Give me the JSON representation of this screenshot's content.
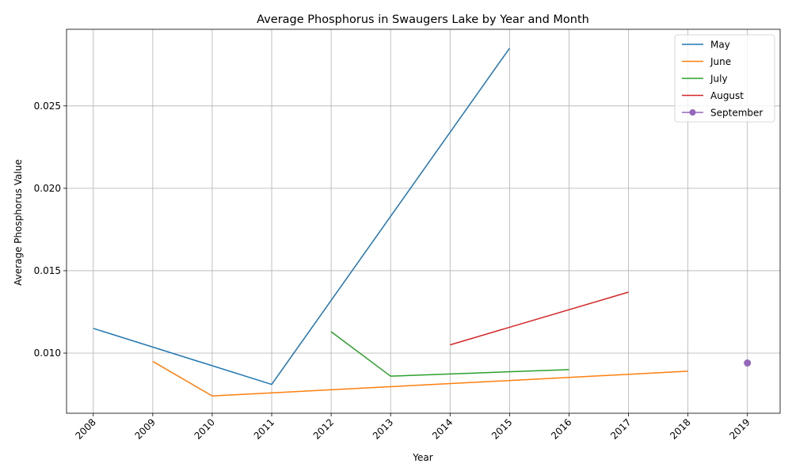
{
  "chart_data": {
    "type": "line",
    "title": "Average Phosphorus in Swaugers Lake by Year and Month",
    "xlabel": "Year",
    "ylabel": "Average Phosphorus Value",
    "xlim": [
      2007.55,
      2019.55
    ],
    "ylim": [
      0.00635,
      0.02965
    ],
    "x_ticks": [
      2008,
      2009,
      2010,
      2011,
      2012,
      2013,
      2014,
      2015,
      2016,
      2017,
      2018,
      2019
    ],
    "y_ticks": [
      0.01,
      0.015,
      0.02,
      0.025
    ],
    "y_tick_labels": [
      "0.010",
      "0.015",
      "0.020",
      "0.025"
    ],
    "grid": true,
    "legend_position": "top-right",
    "series": [
      {
        "name": "May",
        "color": "#1f77b4",
        "marker": "none",
        "x": [
          2008,
          2011,
          2015
        ],
        "y": [
          0.0115,
          0.0081,
          0.0285
        ]
      },
      {
        "name": "June",
        "color": "#ff7f0e",
        "marker": "none",
        "x": [
          2009,
          2010,
          2018
        ],
        "y": [
          0.0095,
          0.0074,
          0.0089
        ]
      },
      {
        "name": "July",
        "color": "#2ca02c",
        "marker": "none",
        "x": [
          2012,
          2013,
          2016
        ],
        "y": [
          0.0113,
          0.0086,
          0.009
        ]
      },
      {
        "name": "August",
        "color": "#d62728",
        "marker": "none",
        "x": [
          2014,
          2017
        ],
        "y": [
          0.0105,
          0.0137
        ]
      },
      {
        "name": "September",
        "color": "#9467bd",
        "marker": "circle",
        "x": [
          2019
        ],
        "y": [
          0.0094
        ]
      }
    ]
  }
}
